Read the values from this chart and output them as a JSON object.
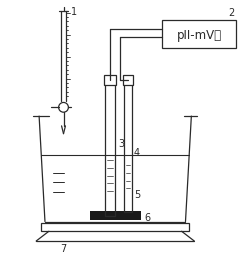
{
  "bg_color": "#ffffff",
  "line_color": "#2a2a2a",
  "box_text": "pII-mV计",
  "label_1": "1",
  "label_2": "2",
  "label_3": "3",
  "label_4": "4",
  "label_5": "5",
  "label_6": "6",
  "label_7": "7",
  "figsize": [
    2.49,
    2.55
  ],
  "dpi": 100
}
